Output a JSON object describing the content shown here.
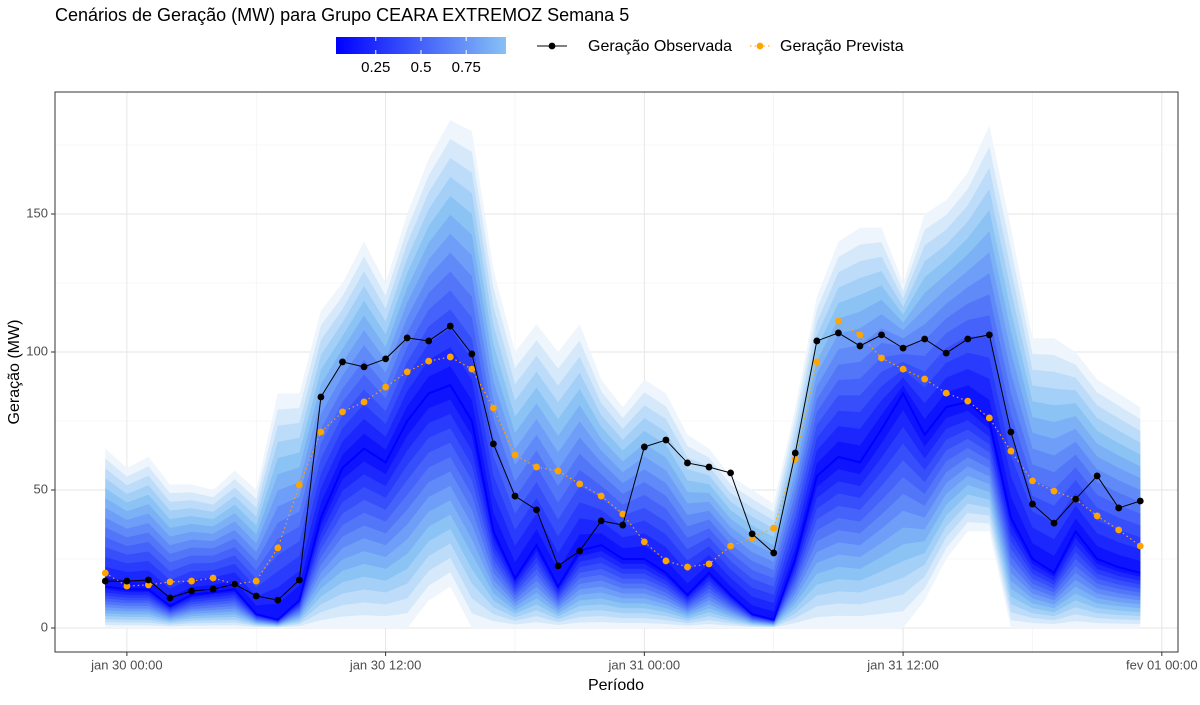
{
  "chart_data": {
    "type": "fan",
    "title": "Cenários de Geração (MW) para Grupo CEARA EXTREMOZ Semana 5",
    "x_label": "Período",
    "y_label": "Geração (MW)",
    "x": [
      "jan 29 23:00",
      "jan 30 00:00",
      "jan 30 01:00",
      "jan 30 02:00",
      "jan 30 03:00",
      "jan 30 04:00",
      "jan 30 05:00",
      "jan 30 06:00",
      "jan 30 07:00",
      "jan 30 08:00",
      "jan 30 09:00",
      "jan 30 10:00",
      "jan 30 11:00",
      "jan 30 12:00",
      "jan 30 13:00",
      "jan 30 14:00",
      "jan 30 15:00",
      "jan 30 16:00",
      "jan 30 17:00",
      "jan 30 18:00",
      "jan 30 19:00",
      "jan 30 20:00",
      "jan 30 21:00",
      "jan 30 22:00",
      "jan 30 23:00",
      "jan 31 00:00",
      "jan 31 01:00",
      "jan 31 02:00",
      "jan 31 03:00",
      "jan 31 04:00",
      "jan 31 05:00",
      "jan 31 06:00",
      "jan 31 07:00",
      "jan 31 08:00",
      "jan 31 09:00",
      "jan 31 10:00",
      "jan 31 11:00",
      "jan 31 12:00",
      "jan 31 13:00",
      "jan 31 14:00",
      "jan 31 15:00",
      "jan 31 16:00",
      "jan 31 17:00",
      "jan 31 18:00",
      "jan 31 19:00",
      "jan 31 20:00",
      "jan 31 21:00",
      "jan 31 22:00",
      "jan 31 23:00"
    ],
    "xlim": [
      "jan 29 20:40",
      "fev 01 00:45"
    ],
    "xticks": [
      "jan 30 00:00",
      "jan 30 12:00",
      "jan 31 00:00",
      "jan 31 12:00",
      "fev 01 00:00"
    ],
    "ylim": [
      -8.7,
      194.2
    ],
    "yticks": [
      0,
      50,
      100,
      150
    ],
    "grid": true,
    "minor_grid": true,
    "fan": {
      "colors": [
        "#0000ff",
        "#87c1f5",
        "#eef5fc"
      ],
      "center": [
        15,
        14,
        14,
        8,
        12,
        13,
        14,
        5,
        3,
        10,
        40,
        58,
        65,
        60,
        75,
        85,
        88,
        75,
        35,
        18,
        30,
        15,
        28,
        30,
        25,
        25,
        20,
        12,
        20,
        12,
        5,
        3,
        25,
        55,
        62,
        60,
        72,
        85,
        70,
        80,
        82,
        75,
        40,
        25,
        20,
        35,
        25,
        22,
        20
      ],
      "upper": [
        65,
        58,
        62,
        52,
        52,
        50,
        57,
        50,
        85,
        85,
        115,
        125,
        140,
        125,
        150,
        170,
        184,
        180,
        130,
        100,
        110,
        100,
        110,
        90,
        80,
        90,
        85,
        70,
        65,
        55,
        50,
        45,
        80,
        120,
        140,
        145,
        145,
        125,
        150,
        155,
        165,
        182,
        145,
        105,
        105,
        100,
        90,
        85,
        80
      ],
      "lower": [
        0,
        0,
        0,
        0,
        0,
        0,
        0,
        0,
        0,
        0,
        0,
        0,
        0,
        0,
        0,
        10,
        15,
        0,
        0,
        0,
        0,
        0,
        0,
        0,
        0,
        0,
        0,
        0,
        0,
        0,
        0,
        0,
        0,
        0,
        0,
        0,
        0,
        0,
        10,
        25,
        35,
        35,
        0,
        0,
        0,
        0,
        0,
        0,
        0
      ]
    },
    "colorbar": {
      "lim": [
        0.03,
        0.97
      ],
      "ticks": [
        0.25,
        0.5,
        0.75
      ]
    },
    "series": [
      {
        "name": "Geração Observada",
        "color": "#000000",
        "style": "solid",
        "values": [
          17,
          17,
          17.4,
          10.9,
          13.4,
          14.1,
          15.9,
          11.6,
          10.1,
          17.4,
          83.7,
          96.4,
          94.6,
          97.5,
          105.1,
          104,
          109.4,
          99.3,
          66.7,
          47.8,
          42.8,
          22.5,
          27.9,
          38.8,
          37.3,
          65.6,
          68.1,
          59.8,
          58.3,
          56.2,
          34.1,
          27.2,
          63.4,
          104,
          106.9,
          102.2,
          106.2,
          101.4,
          104.7,
          99.6,
          104.7,
          106.2,
          71,
          44.9,
          38,
          46.7,
          55.1,
          43.5,
          46
        ]
      },
      {
        "name": "Geração Prevista",
        "color": "#ffa500",
        "style": "dotted",
        "values": [
          19.9,
          15.2,
          15.6,
          16.7,
          17,
          18.1,
          15.9,
          17,
          29,
          51.8,
          71,
          78.3,
          81.9,
          87.3,
          92.8,
          96.7,
          98.2,
          93.8,
          79.7,
          62.7,
          58.3,
          56.9,
          52.2,
          47.8,
          41.3,
          31.2,
          24.3,
          22.1,
          23.2,
          29.7,
          32.6,
          36.2,
          61.2,
          96.4,
          111.2,
          106.2,
          97.8,
          93.8,
          90.2,
          85.1,
          82.2,
          76.1,
          64.1,
          53.3,
          49.6,
          46.7,
          40.6,
          35.5,
          29.7
        ]
      }
    ]
  }
}
